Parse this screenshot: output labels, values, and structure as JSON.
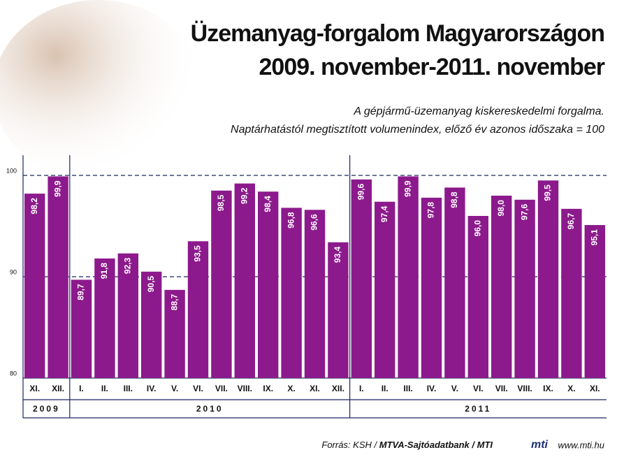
{
  "chart_data": {
    "type": "bar",
    "title": [
      "Üzemanyag-forgalom Magyarországon",
      "2009. november-2011. november"
    ],
    "subtitle": [
      "A gépjármű-üzemanyag kiskereskedelmi forgalma.",
      "Naptárhatástól megtisztított volumenindex, előző év azonos időszaka = 100"
    ],
    "color": "#8c1a8c",
    "ylim": [
      80,
      102
    ],
    "yticks": [
      80,
      90,
      100
    ],
    "grid": true,
    "groups": [
      {
        "label": "2009",
        "categories": [
          "XI.",
          "XII."
        ],
        "values": [
          98.2,
          99.9
        ],
        "value_labels": [
          "98,2",
          "99,9"
        ]
      },
      {
        "label": "2010",
        "categories": [
          "I.",
          "II.",
          "III.",
          "IV.",
          "V.",
          "VI.",
          "VII.",
          "VIII.",
          "IX.",
          "X.",
          "XI.",
          "XII."
        ],
        "values": [
          89.7,
          91.8,
          92.3,
          90.5,
          88.7,
          93.5,
          98.5,
          99.2,
          98.4,
          96.8,
          96.6,
          93.4
        ],
        "value_labels": [
          "89,7",
          "91,8",
          "92,3",
          "90,5",
          "88,7",
          "93,5",
          "98,5",
          "99,2",
          "98,4",
          "96,8",
          "96,6",
          "93,4"
        ]
      },
      {
        "label": "2011",
        "categories": [
          "I.",
          "II.",
          "III.",
          "IV.",
          "V.",
          "VI.",
          "VII.",
          "VIII.",
          "IX.",
          "X.",
          "XI."
        ],
        "values": [
          99.6,
          97.4,
          99.9,
          97.8,
          98.8,
          96.0,
          98.0,
          97.6,
          99.5,
          96.7,
          95.1
        ],
        "value_labels": [
          "99,6",
          "97,4",
          "99,9",
          "97,8",
          "98,8",
          "96,0",
          "98,0",
          "97,6",
          "99,5",
          "96,7",
          "95,1"
        ]
      }
    ],
    "source": [
      "Forrás: KSH / ",
      "MTVA-Sajtóadatbank / MTI"
    ],
    "logo": "mti",
    "website": "www.mti.hu"
  }
}
